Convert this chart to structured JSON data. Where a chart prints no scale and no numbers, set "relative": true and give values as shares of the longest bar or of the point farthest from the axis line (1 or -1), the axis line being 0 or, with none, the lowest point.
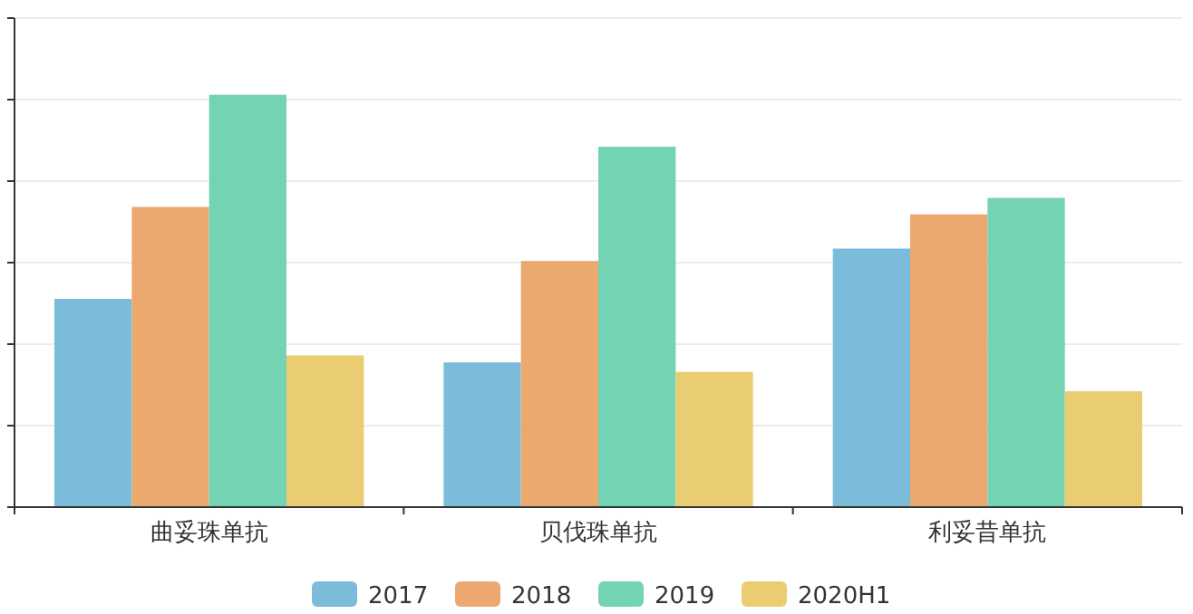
{
  "chart_data": {
    "type": "bar",
    "relative": true,
    "grid": "y",
    "legend": "bottom",
    "categories": [
      "曲妥珠单抗",
      "贝伐珠单抗",
      "利妥昔单抗"
    ],
    "series": [
      {
        "name": "2017",
        "color": "#7cbcdb",
        "values": [
          0.505,
          0.351,
          0.627
        ]
      },
      {
        "name": "2018",
        "color": "#eca96f",
        "values": [
          0.728,
          0.597,
          0.71
        ]
      },
      {
        "name": "2019",
        "color": "#74d3b2",
        "values": [
          1,
          0.874,
          0.75
        ]
      },
      {
        "name": "2020H1",
        "color": "#eacd73",
        "values": [
          0.368,
          0.328,
          0.281
        ]
      }
    ]
  }
}
